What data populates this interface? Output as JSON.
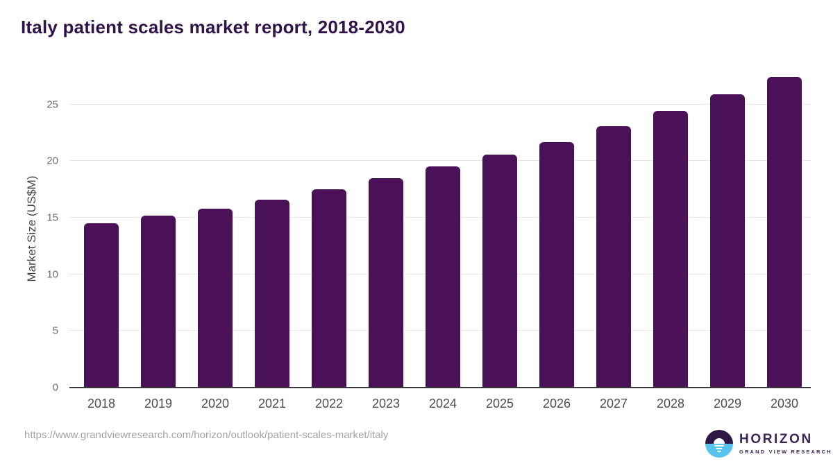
{
  "header": {
    "title": "Italy patient scales market report, 2018-2030"
  },
  "chart_data": {
    "type": "bar",
    "title": "Italy patient scales market report, 2018-2030",
    "categories": [
      "2018",
      "2019",
      "2020",
      "2021",
      "2022",
      "2023",
      "2024",
      "2025",
      "2026",
      "2027",
      "2028",
      "2029",
      "2030"
    ],
    "values": [
      14.5,
      15.2,
      15.8,
      16.6,
      17.5,
      18.5,
      19.5,
      20.6,
      21.7,
      23.1,
      24.4,
      25.9,
      27.4
    ],
    "xlabel": "",
    "ylabel": "Market Size (US$M)",
    "ylim": [
      0,
      28.1
    ],
    "yticks": [
      0,
      5,
      10,
      15,
      20,
      25
    ],
    "grid": true,
    "legend": "none",
    "bar_color": "#4a1158"
  },
  "footer": {
    "source_url": "https://www.grandviewresearch.com/horizon/outlook/patient-scales-market/italy",
    "logo": {
      "name": "HORIZON",
      "subtitle": "GRAND VIEW RESEARCH",
      "purple": "#2e1745",
      "blue": "#58c3ee"
    }
  },
  "colors": {
    "bar": "#4a1158",
    "title_text": "#301349",
    "axis_line": "#383838",
    "gridline": "#e8e8e8"
  }
}
